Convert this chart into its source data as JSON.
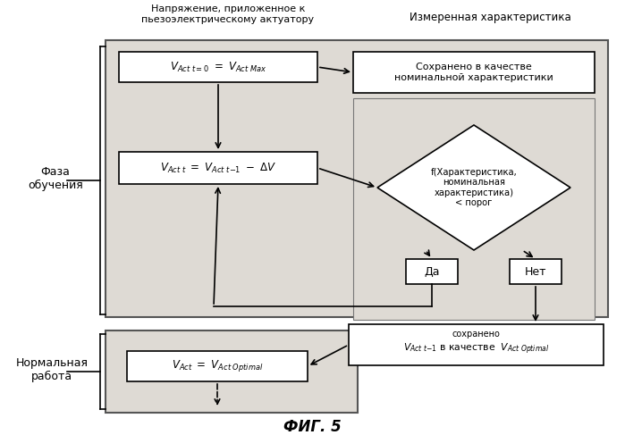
{
  "title": "ФИГ. 5",
  "header_left": "Напряжение, приложенное к\nпьезоэлектрическому актуатору",
  "header_right": "Измеренная характеристика",
  "label_learning": "Фаза\nобучения",
  "label_normal": "Нормальная\nработа",
  "bg_learn_color": "#dedad4",
  "bg_normal_color": "#dedad4",
  "box_color": "#ffffff",
  "fig_bg": "#ffffff"
}
